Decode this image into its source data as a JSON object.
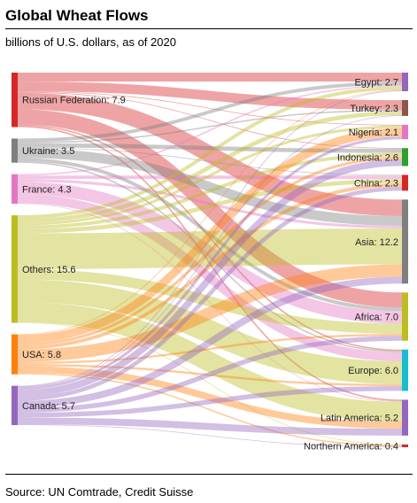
{
  "title": "Global Wheat Flows",
  "subtitle": "billions of U.S. dollars, as of 2020",
  "source": "Source: UN Comtrade, Credit Suisse",
  "sources": [
    {
      "name": "Russian Federation",
      "value": 7.9,
      "label": "Russian Federation: 7.9",
      "color": "#d62728"
    },
    {
      "name": "Ukraine",
      "value": 3.5,
      "label": "Ukraine: 3.5",
      "color": "#7f7f7f"
    },
    {
      "name": "France",
      "value": 4.3,
      "label": "France: 4.3",
      "color": "#e377c2"
    },
    {
      "name": "Others",
      "value": 15.6,
      "label": "Others: 15.6",
      "color": "#bcbd22"
    },
    {
      "name": "USA",
      "value": 5.8,
      "label": "USA: 5.8",
      "color": "#ff7f0e"
    },
    {
      "name": "Canada",
      "value": 5.7,
      "label": "Canada: 5.7",
      "color": "#9467bd"
    }
  ],
  "targets": [
    {
      "name": "Egypt",
      "value": 2.7,
      "label": "Egypt: 2.7",
      "color": "#9467bd"
    },
    {
      "name": "Turkey",
      "value": 2.3,
      "label": "Turkey: 2.3",
      "color": "#8c564b"
    },
    {
      "name": "Nigeria",
      "value": 2.1,
      "label": "Nigeria: 2.1",
      "color": "#e377c2"
    },
    {
      "name": "Indonesia",
      "value": 2.6,
      "label": "Indonesia: 2.6",
      "color": "#2ca02c"
    },
    {
      "name": "China",
      "value": 2.3,
      "label": "China: 2.3",
      "color": "#d62728"
    },
    {
      "name": "Asia",
      "value": 12.2,
      "label": "Asia: 12.2",
      "color": "#7f7f7f"
    },
    {
      "name": "Africa",
      "value": 7.0,
      "label": "Africa: 7.0",
      "color": "#bcbd22"
    },
    {
      "name": "Europe",
      "value": 6.0,
      "label": "Europe: 6.0",
      "color": "#17becf"
    },
    {
      "name": "Latin America",
      "value": 5.2,
      "label": "Latin America: 5.2",
      "color": "#9467bd"
    },
    {
      "name": "Northern America",
      "value": 0.4,
      "label": "Northern America: 0.4",
      "color": "#d62728"
    }
  ],
  "links": [
    {
      "source": "Russian Federation",
      "target": "Egypt",
      "value": 1.3
    },
    {
      "source": "Russian Federation",
      "target": "Turkey",
      "value": 1.4
    },
    {
      "source": "Russian Federation",
      "target": "Nigeria",
      "value": 0.1
    },
    {
      "source": "Russian Federation",
      "target": "Indonesia",
      "value": 0.1
    },
    {
      "source": "Russian Federation",
      "target": "Asia",
      "value": 2.4
    },
    {
      "source": "Russian Federation",
      "target": "Africa",
      "value": 2.2
    },
    {
      "source": "Russian Federation",
      "target": "Europe",
      "value": 0.2
    },
    {
      "source": "Russian Federation",
      "target": "Latin America",
      "value": 0.2
    },
    {
      "source": "Ukraine",
      "target": "Egypt",
      "value": 0.5
    },
    {
      "source": "Ukraine",
      "target": "Turkey",
      "value": 0.2
    },
    {
      "source": "Ukraine",
      "target": "Indonesia",
      "value": 0.6
    },
    {
      "source": "Ukraine",
      "target": "China",
      "value": 0.1
    },
    {
      "source": "Ukraine",
      "target": "Asia",
      "value": 1.4
    },
    {
      "source": "Ukraine",
      "target": "Africa",
      "value": 0.5
    },
    {
      "source": "Ukraine",
      "target": "Europe",
      "value": 0.2
    },
    {
      "source": "France",
      "target": "Egypt",
      "value": 0.2
    },
    {
      "source": "France",
      "target": "China",
      "value": 0.5
    },
    {
      "source": "France",
      "target": "Asia",
      "value": 0.4
    },
    {
      "source": "France",
      "target": "Africa",
      "value": 1.8
    },
    {
      "source": "France",
      "target": "Europe",
      "value": 1.3
    },
    {
      "source": "France",
      "target": "Latin America",
      "value": 0.1
    },
    {
      "source": "Others",
      "target": "Egypt",
      "value": 0.5
    },
    {
      "source": "Others",
      "target": "Turkey",
      "value": 0.6
    },
    {
      "source": "Others",
      "target": "Nigeria",
      "value": 0.4
    },
    {
      "source": "Others",
      "target": "Indonesia",
      "value": 0.5
    },
    {
      "source": "Others",
      "target": "China",
      "value": 0.6
    },
    {
      "source": "Others",
      "target": "Asia",
      "value": 5.2
    },
    {
      "source": "Others",
      "target": "Africa",
      "value": 1.5
    },
    {
      "source": "Others",
      "target": "Europe",
      "value": 3.3
    },
    {
      "source": "Others",
      "target": "Latin America",
      "value": 2.9
    },
    {
      "source": "Others",
      "target": "Northern America",
      "value": 0.1
    },
    {
      "source": "USA",
      "target": "Egypt",
      "value": 0.1
    },
    {
      "source": "USA",
      "target": "Nigeria",
      "value": 1.2
    },
    {
      "source": "USA",
      "target": "Indonesia",
      "value": 0.4
    },
    {
      "source": "USA",
      "target": "China",
      "value": 0.5
    },
    {
      "source": "USA",
      "target": "Asia",
      "value": 1.8
    },
    {
      "source": "USA",
      "target": "Africa",
      "value": 0.3
    },
    {
      "source": "USA",
      "target": "Europe",
      "value": 0.3
    },
    {
      "source": "USA",
      "target": "Latin America",
      "value": 1.0
    },
    {
      "source": "USA",
      "target": "Northern America",
      "value": 0.2
    },
    {
      "source": "Canada",
      "target": "Egypt",
      "value": 0.1
    },
    {
      "source": "Canada",
      "target": "Turkey",
      "value": 0.1
    },
    {
      "source": "Canada",
      "target": "Nigeria",
      "value": 0.4
    },
    {
      "source": "Canada",
      "target": "Indonesia",
      "value": 1.0
    },
    {
      "source": "Canada",
      "target": "China",
      "value": 0.6
    },
    {
      "source": "Canada",
      "target": "Asia",
      "value": 1.0
    },
    {
      "source": "Canada",
      "target": "Africa",
      "value": 0.7
    },
    {
      "source": "Canada",
      "target": "Europe",
      "value": 0.7
    },
    {
      "source": "Canada",
      "target": "Latin America",
      "value": 1.0
    },
    {
      "source": "Canada",
      "target": "Northern America",
      "value": 0.1
    }
  ]
}
